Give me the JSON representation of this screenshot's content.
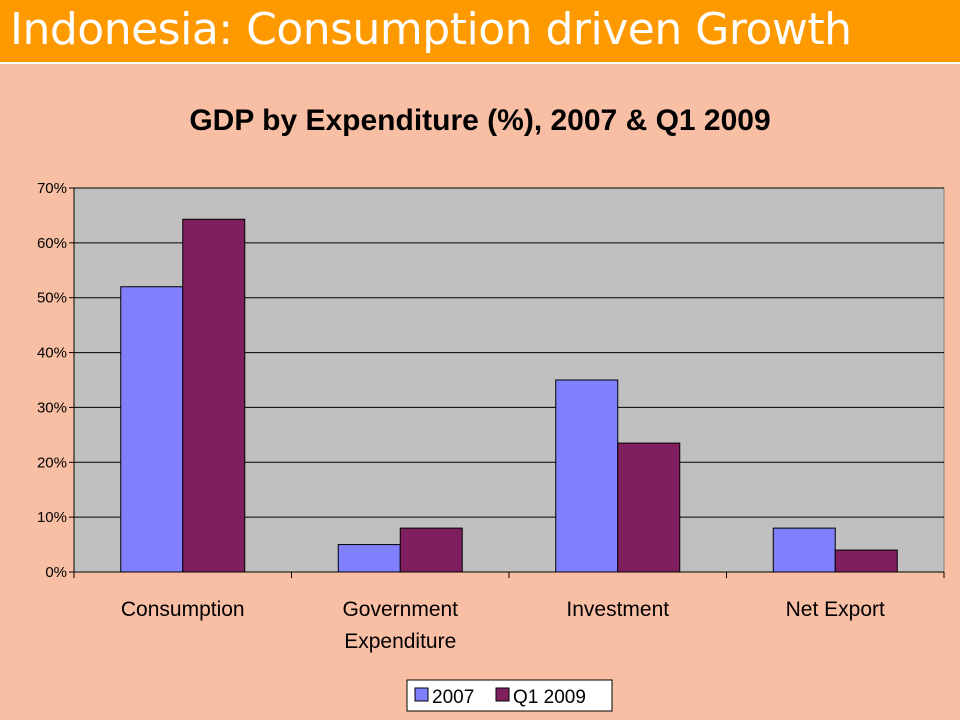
{
  "slide": {
    "title": "Indonesia: Consumption driven Growth"
  },
  "colors": {
    "title_bar": "#FF9900",
    "background": "#F9BFA5",
    "plot_area": "#C0C0C0"
  },
  "chart_data": {
    "type": "bar",
    "title": "GDP by Expenditure (%), 2007 & Q1 2009",
    "categories": [
      [
        "Consumption"
      ],
      [
        "Government",
        "Expenditure"
      ],
      [
        "Investment"
      ],
      [
        "Net Export"
      ]
    ],
    "series": [
      {
        "name": "2007",
        "color": "#8080FF",
        "values": [
          52,
          5,
          35,
          8
        ]
      },
      {
        "name": "Q1 2009",
        "color": "#7F1F5F",
        "values": [
          64.3,
          8,
          23.5,
          4
        ]
      }
    ],
    "ylim": [
      0,
      70
    ],
    "yticks": [
      "0%",
      "10%",
      "20%",
      "30%",
      "40%",
      "50%",
      "60%",
      "70%"
    ],
    "grid": true,
    "legend": "bottom"
  }
}
